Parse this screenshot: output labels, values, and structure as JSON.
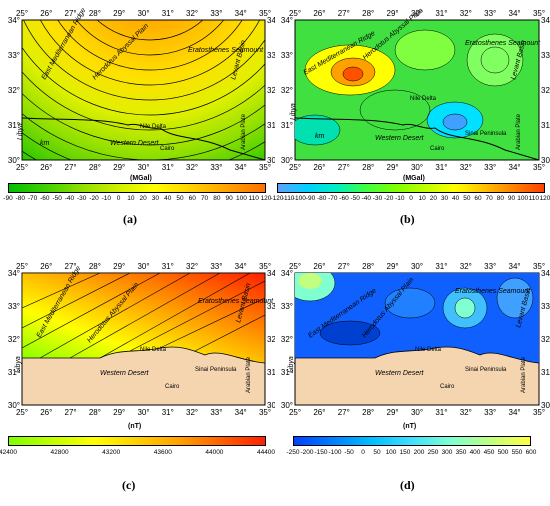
{
  "lon_labels": [
    "25°",
    "26°",
    "27°",
    "28°",
    "29°",
    "30°",
    "31°",
    "32°",
    "33°",
    "34°",
    "35°"
  ],
  "lat_labels": [
    "34°",
    "33°",
    "32°",
    "31°",
    "30°"
  ],
  "places": {
    "east_med_ridge": "East Mediterranean Ridge",
    "herodotus": "Herodotus Abyssal Plain",
    "eratosthenes": "Eratosthenes Seamount",
    "levant": "Levant Basin",
    "nile_delta": "Nile Delta",
    "western_desert": "Western Desert",
    "sinai": "Sinai Peninsula",
    "cairo": "Cairo",
    "libya": "Libya",
    "arabian_plate": "Arabian Plate",
    "km": "km"
  },
  "panels": [
    {
      "id": "a",
      "label": "(a)",
      "unit": "(MGal)",
      "colorbar_ticks": [
        "-90",
        "-80",
        "-70",
        "-60",
        "-50",
        "-40",
        "-30",
        "-20",
        "-10",
        "0",
        "10",
        "20",
        "30",
        "40",
        "50",
        "60",
        "70",
        "80",
        "90",
        "100",
        "110",
        "120"
      ],
      "colors": [
        "#00c000",
        "#40d000",
        "#90e000",
        "#d0f000",
        "#ffff00",
        "#ffd000",
        "#ffa000",
        "#ff7000"
      ]
    },
    {
      "id": "b",
      "label": "(b)",
      "unit": "(MGal)",
      "colorbar_ticks": [
        "-120",
        "-110",
        "-100",
        "-90",
        "-80",
        "-70",
        "-60",
        "-50",
        "-40",
        "-30",
        "-20",
        "-10",
        "0",
        "10",
        "20",
        "30",
        "40",
        "50",
        "60",
        "70",
        "80",
        "90",
        "100",
        "110",
        "120"
      ],
      "colors": [
        "#60a0ff",
        "#00d0ff",
        "#00f0c0",
        "#40ff40",
        "#80ff00",
        "#c0ff00",
        "#ffff00",
        "#ffc000",
        "#ff8000",
        "#ff4000"
      ]
    },
    {
      "id": "c",
      "label": "(c)",
      "unit": "(nT)",
      "colorbar_ticks": [
        "42400",
        "42800",
        "43200",
        "43600",
        "44000",
        "44400"
      ],
      "colors": [
        "#80ff00",
        "#c0ff00",
        "#ffff00",
        "#ffd000",
        "#ffa000",
        "#ff6000",
        "#ff2000"
      ]
    },
    {
      "id": "d",
      "label": "(d)",
      "unit": "(nT)",
      "colorbar_ticks": [
        "-250",
        "-200",
        "-150",
        "-100",
        "-50",
        "0",
        "50",
        "100",
        "150",
        "200",
        "250",
        "300",
        "350",
        "400",
        "450",
        "500",
        "550",
        "600"
      ],
      "colors": [
        "#0040ff",
        "#0080ff",
        "#00c0ff",
        "#40e0ff",
        "#80ffd0",
        "#c0ff80",
        "#ffff40"
      ]
    }
  ]
}
